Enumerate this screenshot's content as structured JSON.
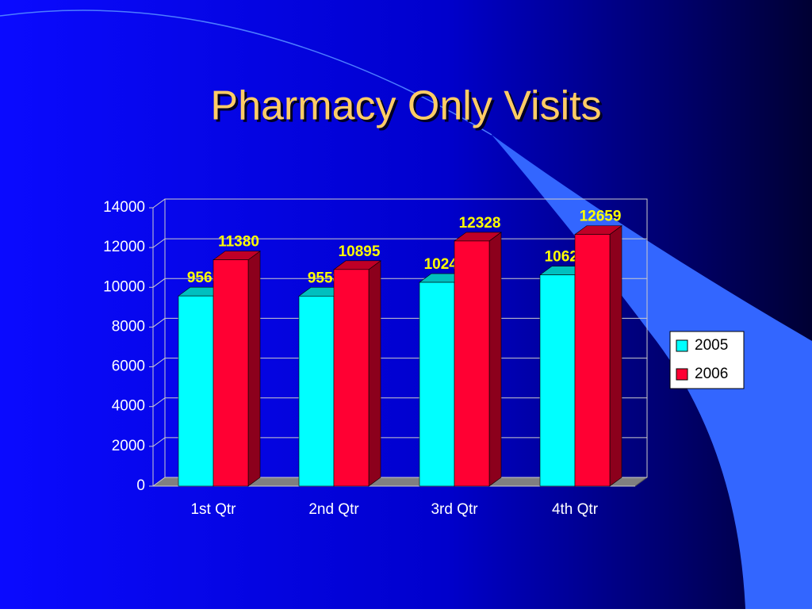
{
  "chart_data": {
    "type": "bar3d",
    "title": "Pharmacy Only Visits",
    "categories": [
      "1st Qtr",
      "2nd Qtr",
      "3rd Qtr",
      "4th Qtr"
    ],
    "series": [
      {
        "name": "2005",
        "color": "#00ffff",
        "values": [
          9565,
          9558,
          10249,
          10622
        ]
      },
      {
        "name": "2006",
        "color": "#ff0033",
        "values": [
          11380,
          10895,
          12328,
          12659
        ]
      }
    ],
    "ylim": [
      0,
      14000
    ],
    "yticks": [
      0,
      2000,
      4000,
      6000,
      8000,
      10000,
      12000,
      14000
    ],
    "grid": true,
    "legend": "right"
  }
}
